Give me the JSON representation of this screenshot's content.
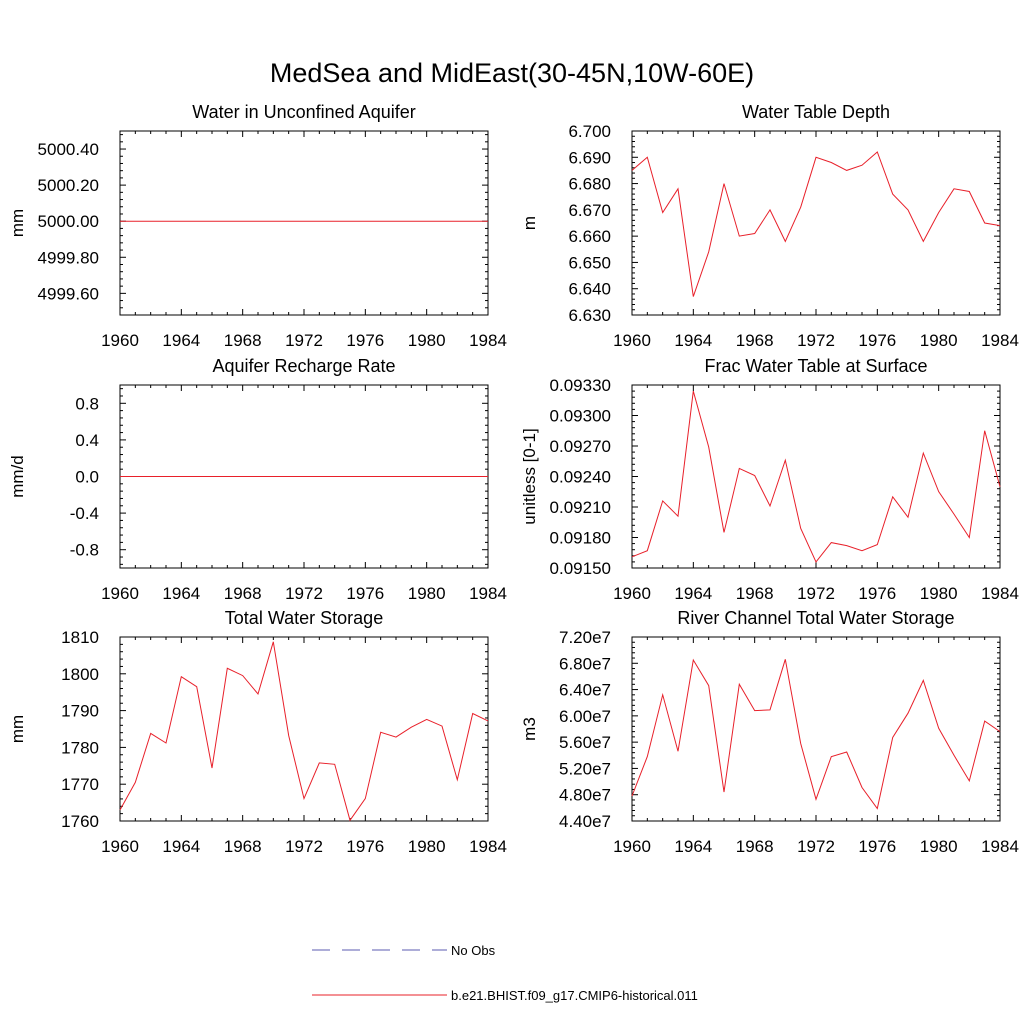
{
  "figure": {
    "title": "MedSea and MidEast(30-45N,10W-60E)"
  },
  "legend": [
    {
      "label": "No Obs",
      "color": "#5b5bb0",
      "style": "dashed"
    },
    {
      "label": "b.e21.BHIST.f09_g17.CMIP6-historical.011",
      "color": "#e8202a",
      "style": "solid"
    }
  ],
  "chart_data": [
    {
      "type": "line",
      "title": "Water in Unconfined Aquifer",
      "ylabel": "mm",
      "xlim": [
        1960,
        1984
      ],
      "ylim": [
        4999.48,
        5000.5
      ],
      "xticks": [
        "1960",
        "1964",
        "1968",
        "1972",
        "1976",
        "1980",
        "1984"
      ],
      "yticks": [
        "4999.60",
        "4999.80",
        "5000.00",
        "5000.20",
        "5000.40"
      ],
      "x": [
        1960,
        1984
      ],
      "series": [
        {
          "name": "b.e21.BHIST.f09_g17.CMIP6-historical.011",
          "color": "#e8202a",
          "values": [
            5000.0,
            5000.0
          ]
        }
      ]
    },
    {
      "type": "line",
      "title": "Water Table Depth",
      "ylabel": "m",
      "xlim": [
        1960,
        1984
      ],
      "ylim": [
        6.63,
        6.7
      ],
      "xticks": [
        "1960",
        "1964",
        "1968",
        "1972",
        "1976",
        "1980",
        "1984"
      ],
      "yticks": [
        "6.630",
        "6.640",
        "6.650",
        "6.660",
        "6.670",
        "6.680",
        "6.690",
        "6.700"
      ],
      "x": [
        1960,
        1961,
        1962,
        1963,
        1964,
        1965,
        1966,
        1967,
        1968,
        1969,
        1970,
        1971,
        1972,
        1973,
        1974,
        1975,
        1976,
        1977,
        1978,
        1979,
        1980,
        1981,
        1982,
        1983,
        1984
      ],
      "series": [
        {
          "name": "b.e21.BHIST.f09_g17.CMIP6-historical.011",
          "color": "#e8202a",
          "values": [
            6.685,
            6.69,
            6.669,
            6.678,
            6.637,
            6.654,
            6.68,
            6.66,
            6.661,
            6.67,
            6.658,
            6.671,
            6.69,
            6.688,
            6.685,
            6.687,
            6.692,
            6.676,
            6.67,
            6.658,
            6.669,
            6.678,
            6.677,
            6.665,
            6.664
          ]
        }
      ]
    },
    {
      "type": "line",
      "title": "Aquifer Recharge Rate",
      "ylabel": "mm/d",
      "xlim": [
        1960,
        1984
      ],
      "ylim": [
        -1.0,
        1.0
      ],
      "xticks": [
        "1960",
        "1964",
        "1968",
        "1972",
        "1976",
        "1980",
        "1984"
      ],
      "yticks": [
        "-0.8",
        "-0.4",
        "0.0",
        "0.4",
        "0.8"
      ],
      "x": [
        1960,
        1984
      ],
      "series": [
        {
          "name": "b.e21.BHIST.f09_g17.CMIP6-historical.011",
          "color": "#e8202a",
          "values": [
            0.0,
            0.0
          ]
        }
      ]
    },
    {
      "type": "line",
      "title": "Frac Water Table at Surface",
      "ylabel": "unitless [0-1]",
      "xlim": [
        1960,
        1984
      ],
      "ylim": [
        0.0915,
        0.0933
      ],
      "xticks": [
        "1960",
        "1964",
        "1968",
        "1972",
        "1976",
        "1980",
        "1984"
      ],
      "yticks": [
        "0.09150",
        "0.09180",
        "0.09210",
        "0.09240",
        "0.09270",
        "0.09300",
        "0.09330"
      ],
      "x": [
        1960,
        1961,
        1962,
        1963,
        1964,
        1965,
        1966,
        1967,
        1968,
        1969,
        1970,
        1971,
        1972,
        1973,
        1974,
        1975,
        1976,
        1977,
        1978,
        1979,
        1980,
        1981,
        1982,
        1983,
        1984
      ],
      "series": [
        {
          "name": "b.e21.BHIST.f09_g17.CMIP6-historical.011",
          "color": "#e8202a",
          "values": [
            0.09161,
            0.09167,
            0.09216,
            0.09201,
            0.09324,
            0.09269,
            0.09185,
            0.09248,
            0.09241,
            0.09211,
            0.09256,
            0.09189,
            0.09156,
            0.09175,
            0.09172,
            0.09167,
            0.09173,
            0.0922,
            0.092,
            0.09263,
            0.09225,
            0.09203,
            0.0918,
            0.09285,
            0.0923
          ]
        }
      ]
    },
    {
      "type": "line",
      "title": "Total Water Storage",
      "ylabel": "mm",
      "xlim": [
        1960,
        1984
      ],
      "ylim": [
        1760,
        1810
      ],
      "xticks": [
        "1960",
        "1964",
        "1968",
        "1972",
        "1976",
        "1980",
        "1984"
      ],
      "yticks": [
        "1760",
        "1770",
        "1780",
        "1790",
        "1800",
        "1810"
      ],
      "x": [
        1960,
        1961,
        1962,
        1963,
        1964,
        1965,
        1966,
        1967,
        1968,
        1969,
        1970,
        1971,
        1972,
        1973,
        1974,
        1975,
        1976,
        1977,
        1978,
        1979,
        1980,
        1981,
        1982,
        1983,
        1984
      ],
      "series": [
        {
          "name": "b.e21.BHIST.f09_g17.CMIP6-historical.011",
          "color": "#e8202a",
          "values": [
            1763,
            1770.5,
            1783.8,
            1781.2,
            1799.2,
            1796.5,
            1774.4,
            1801.5,
            1799.5,
            1794.5,
            1808.7,
            1783.2,
            1766.1,
            1775.8,
            1775.4,
            1760.2,
            1766.1,
            1784.1,
            1782.8,
            1785.5,
            1787.6,
            1785.8,
            1771.2,
            1789.2,
            1787.2
          ]
        }
      ]
    },
    {
      "type": "line",
      "title": "River Channel Total Water Storage",
      "ylabel": "m3",
      "xlim": [
        1960,
        1984
      ],
      "ylim": [
        44000000,
        72000000
      ],
      "xticks": [
        "1960",
        "1964",
        "1968",
        "1972",
        "1976",
        "1980",
        "1984"
      ],
      "yticks": [
        "4.40e7",
        "4.80e7",
        "5.20e7",
        "5.60e7",
        "6.00e7",
        "6.40e7",
        "6.80e7",
        "7.20e7"
      ],
      "x": [
        1960,
        1961,
        1962,
        1963,
        1964,
        1965,
        1966,
        1967,
        1968,
        1969,
        1970,
        1971,
        1972,
        1973,
        1974,
        1975,
        1976,
        1977,
        1978,
        1979,
        1980,
        1981,
        1982,
        1983,
        1984
      ],
      "series": [
        {
          "name": "b.e21.BHIST.f09_g17.CMIP6-historical.011",
          "color": "#e8202a",
          "values": [
            47800000,
            53800000,
            63200000,
            54600000,
            68500000,
            64600000,
            48400000,
            64800000,
            60800000,
            60900000,
            68600000,
            55800000,
            47300000,
            53800000,
            54500000,
            49100000,
            45900000,
            56700000,
            60400000,
            65400000,
            58100000,
            54000000,
            50100000,
            59200000,
            57600000
          ]
        }
      ]
    }
  ]
}
